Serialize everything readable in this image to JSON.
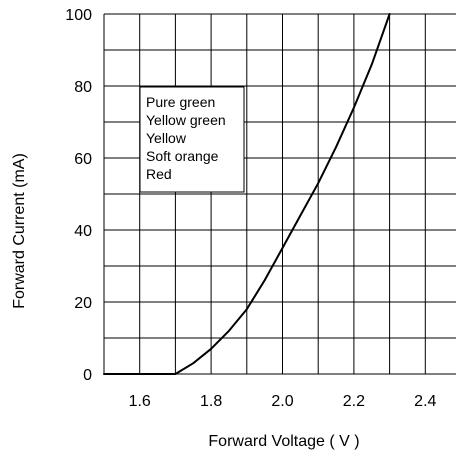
{
  "chart_data": {
    "type": "line",
    "title": "",
    "xlabel": "Forward Voltage ( V )",
    "ylabel": "Forward Current (mA)",
    "xlim": [
      1.5,
      2.5
    ],
    "ylim": [
      0,
      100
    ],
    "xticks": [
      1.6,
      1.8,
      2.0,
      2.2,
      2.4
    ],
    "xtick_labels": [
      "1.6",
      "1.8",
      "2.0",
      "2.2",
      "2.4"
    ],
    "yticks": [
      0,
      20,
      40,
      60,
      80,
      100
    ],
    "ytick_labels": [
      "0",
      "20",
      "40",
      "60",
      "80",
      "100"
    ],
    "x_minor_step": 0.1,
    "y_minor_step": 10,
    "grid": true,
    "legend_entries": [
      "Pure green",
      "Yellow green",
      "Yellow",
      "Soft orange",
      "Red"
    ],
    "legend_position": "upper-left",
    "series": [
      {
        "x": [
          1.5,
          1.6,
          1.7,
          1.75,
          1.8,
          1.85,
          1.9,
          1.95,
          2.0,
          2.05,
          2.1,
          2.15,
          2.2,
          2.25,
          2.3
        ],
        "y": [
          0,
          0,
          0,
          3,
          7,
          12,
          18,
          26,
          35,
          44,
          53,
          63,
          74,
          86,
          100
        ]
      }
    ],
    "colors": {
      "line": "#000000",
      "grid": "#000000",
      "background": "#ffffff"
    }
  }
}
